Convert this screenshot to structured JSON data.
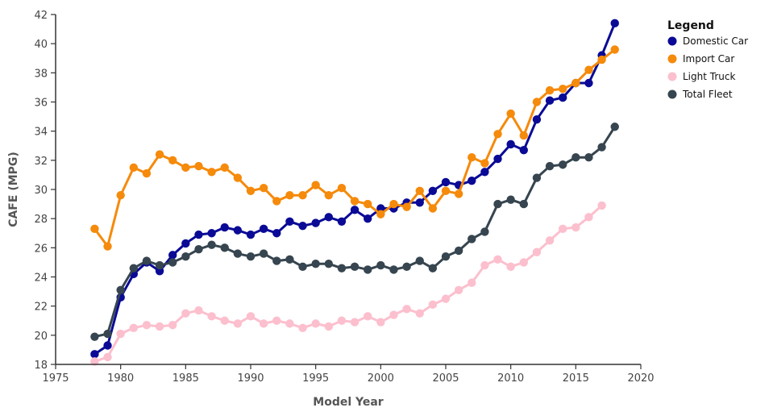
{
  "chart_data": {
    "type": "line",
    "title": "",
    "xlabel": "Model Year",
    "ylabel": "CAFE (MPG)",
    "xlim": [
      1975,
      2020
    ],
    "ylim": [
      18,
      42
    ],
    "xticks": [
      1975,
      1980,
      1985,
      1990,
      1995,
      2000,
      2005,
      2010,
      2015,
      2020
    ],
    "yticks": [
      18,
      20,
      22,
      24,
      26,
      28,
      30,
      32,
      34,
      36,
      38,
      40,
      42
    ],
    "grid": false,
    "legend_title": "Legend",
    "legend_position": "top-right",
    "series": [
      {
        "name": "Domestic Car",
        "color": "#0a0a96",
        "x": [
          1978,
          1979,
          1980,
          1981,
          1982,
          1983,
          1984,
          1985,
          1986,
          1987,
          1988,
          1989,
          1990,
          1991,
          1992,
          1993,
          1994,
          1995,
          1996,
          1997,
          1998,
          1999,
          2000,
          2001,
          2002,
          2003,
          2004,
          2005,
          2006,
          2007,
          2008,
          2009,
          2010,
          2011,
          2012,
          2013,
          2014,
          2015,
          2016,
          2017,
          2018
        ],
        "values": [
          18.7,
          19.3,
          22.6,
          24.2,
          25.0,
          24.4,
          25.5,
          26.3,
          26.9,
          27.0,
          27.4,
          27.2,
          26.9,
          27.3,
          27.0,
          27.8,
          27.5,
          27.7,
          28.1,
          27.8,
          28.6,
          28.0,
          28.7,
          28.7,
          29.1,
          29.1,
          29.9,
          30.5,
          30.3,
          30.6,
          31.2,
          32.1,
          33.1,
          32.7,
          34.8,
          36.1,
          36.3,
          37.3,
          37.3,
          39.2,
          41.4
        ]
      },
      {
        "name": "Import Car",
        "color": "#f58a0b",
        "x": [
          1978,
          1979,
          1980,
          1981,
          1982,
          1983,
          1984,
          1985,
          1986,
          1987,
          1988,
          1989,
          1990,
          1991,
          1992,
          1993,
          1994,
          1995,
          1996,
          1997,
          1998,
          1999,
          2000,
          2001,
          2002,
          2003,
          2004,
          2005,
          2006,
          2007,
          2008,
          2009,
          2010,
          2011,
          2012,
          2013,
          2014,
          2015,
          2016,
          2017,
          2018
        ],
        "values": [
          27.3,
          26.1,
          29.6,
          31.5,
          31.1,
          32.4,
          32.0,
          31.5,
          31.6,
          31.2,
          31.5,
          30.8,
          29.9,
          30.1,
          29.2,
          29.6,
          29.6,
          30.3,
          29.6,
          30.1,
          29.2,
          29.0,
          28.3,
          29.0,
          28.8,
          29.9,
          28.7,
          29.9,
          29.7,
          32.2,
          31.8,
          33.8,
          35.2,
          33.7,
          36.0,
          36.8,
          36.9,
          37.3,
          38.2,
          38.9,
          39.6
        ]
      },
      {
        "name": "Light Truck",
        "color": "#fcbfce",
        "x": [
          1978,
          1979,
          1980,
          1981,
          1982,
          1983,
          1984,
          1985,
          1986,
          1987,
          1988,
          1989,
          1990,
          1991,
          1992,
          1993,
          1994,
          1995,
          1996,
          1997,
          1998,
          1999,
          2000,
          2001,
          2002,
          2003,
          2004,
          2005,
          2006,
          2007,
          2008,
          2009,
          2010,
          2011,
          2012,
          2013,
          2014,
          2015,
          2016,
          2017
        ],
        "values": [
          18.2,
          18.5,
          20.1,
          20.5,
          20.7,
          20.6,
          20.7,
          21.5,
          21.7,
          21.3,
          21.0,
          20.8,
          21.3,
          20.8,
          21.0,
          20.8,
          20.5,
          20.8,
          20.6,
          21.0,
          20.9,
          21.3,
          20.9,
          21.4,
          21.8,
          21.5,
          22.1,
          22.5,
          23.1,
          23.6,
          24.8,
          25.2,
          24.7,
          25.0,
          25.7,
          26.5,
          27.3,
          27.4,
          28.1,
          28.9
        ]
      },
      {
        "name": "Total Fleet",
        "color": "#36454f",
        "x": [
          1978,
          1979,
          1980,
          1981,
          1982,
          1983,
          1984,
          1985,
          1986,
          1987,
          1988,
          1989,
          1990,
          1991,
          1992,
          1993,
          1994,
          1995,
          1996,
          1997,
          1998,
          1999,
          2000,
          2001,
          2002,
          2003,
          2004,
          2005,
          2006,
          2007,
          2008,
          2009,
          2010,
          2011,
          2012,
          2013,
          2014,
          2015,
          2016,
          2017,
          2018
        ],
        "values": [
          19.9,
          20.1,
          23.1,
          24.6,
          25.1,
          24.8,
          25.0,
          25.4,
          25.9,
          26.2,
          26.0,
          25.6,
          25.4,
          25.6,
          25.1,
          25.2,
          24.7,
          24.9,
          24.9,
          24.6,
          24.7,
          24.5,
          24.8,
          24.5,
          24.7,
          25.1,
          24.6,
          25.4,
          25.8,
          26.6,
          27.1,
          29.0,
          29.3,
          29.0,
          30.8,
          31.6,
          31.7,
          32.2,
          32.2,
          32.9,
          34.3
        ]
      }
    ]
  }
}
